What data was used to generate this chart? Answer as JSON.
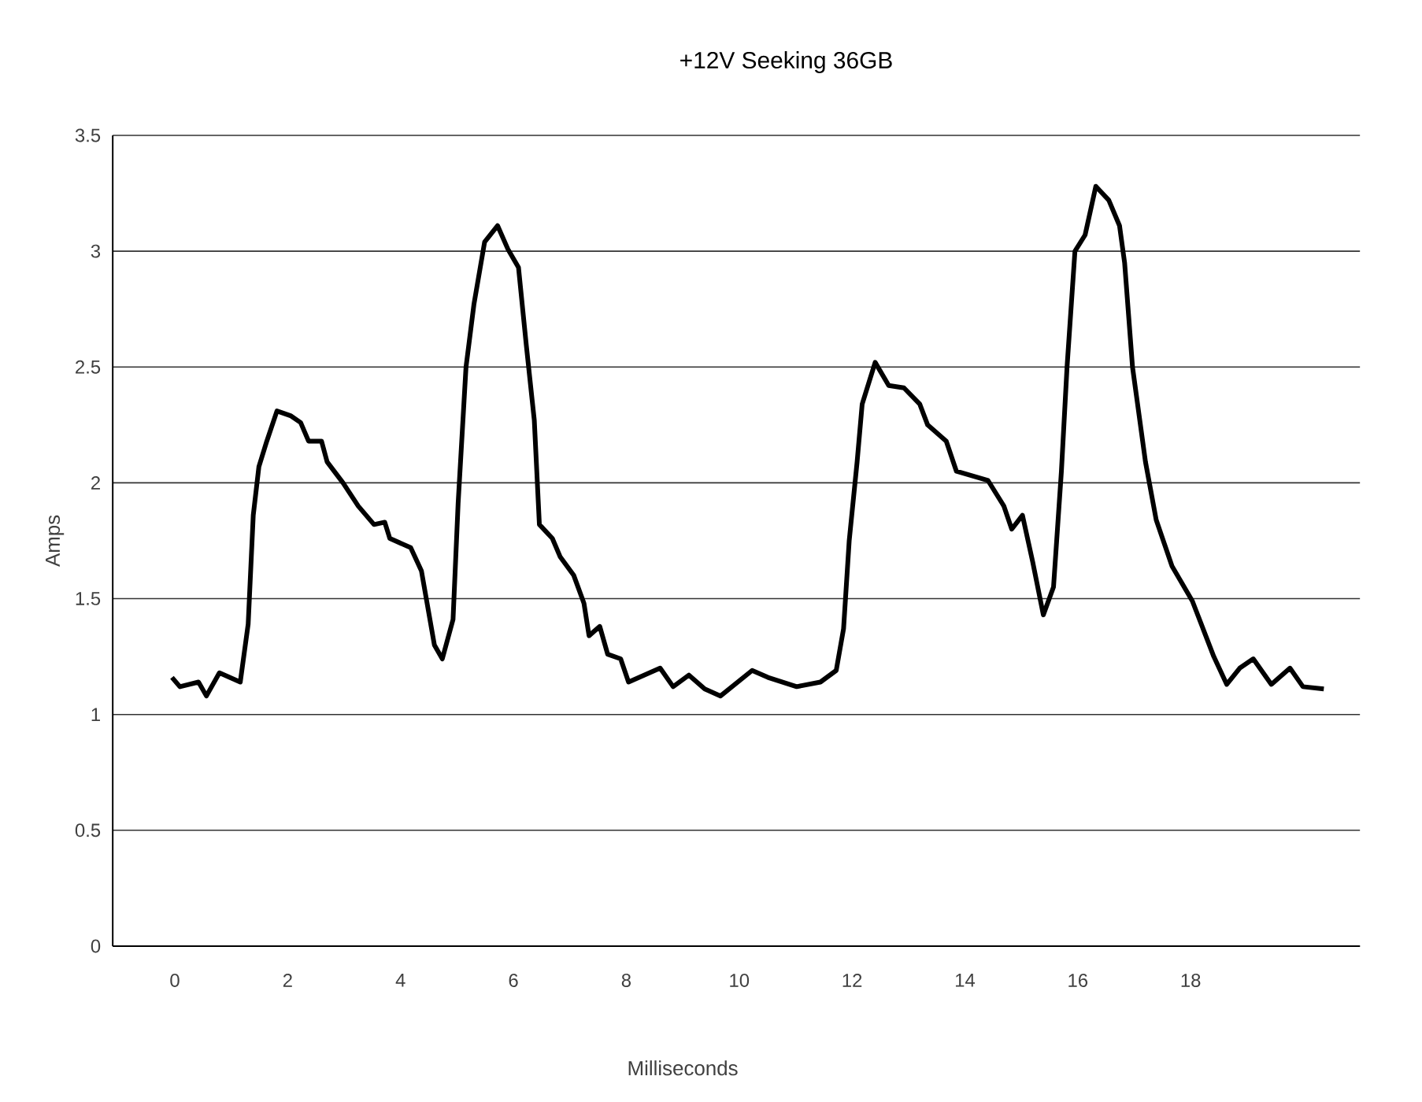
{
  "chart_data": {
    "type": "line",
    "title": "+12V Seeking 36GB",
    "xlabel": "Milliseconds",
    "ylabel": "Amps",
    "xlim": [
      -1.1,
      21
    ],
    "xticks": [
      0,
      2,
      4,
      6,
      8,
      10,
      12,
      14,
      16,
      18
    ],
    "ylim": [
      0,
      3.5
    ],
    "yticks": [
      0,
      0.5,
      1,
      1.5,
      2,
      2.5,
      3,
      3.5
    ],
    "grid": "y",
    "marker": "none",
    "line_style": "solid",
    "series": [
      {
        "color": "#000000",
        "x": [
          -0.05,
          0.09,
          0.42,
          0.56,
          0.79,
          1.16,
          1.3,
          1.39,
          1.49,
          1.63,
          1.81,
          2.05,
          2.23,
          2.37,
          2.6,
          2.7,
          2.98,
          3.25,
          3.53,
          3.72,
          3.81,
          4.18,
          4.37,
          4.6,
          4.74,
          4.93,
          5.02,
          5.16,
          5.3,
          5.49,
          5.72,
          5.9,
          6.09,
          6.23,
          6.37,
          6.46,
          6.69,
          6.83,
          7.07,
          7.25,
          7.34,
          7.53,
          7.67,
          7.9,
          8.04,
          8.32,
          8.6,
          8.83,
          9.11,
          9.39,
          9.67,
          10.23,
          10.51,
          11.02,
          11.44,
          11.72,
          11.85,
          11.95,
          12.09,
          12.18,
          12.41,
          12.65,
          12.92,
          13.2,
          13.34,
          13.67,
          13.85,
          14.41,
          14.69,
          14.83,
          15.02,
          15.2,
          15.39,
          15.57,
          15.71,
          15.81,
          15.95,
          16.13,
          16.32,
          16.55,
          16.74,
          16.83,
          16.97,
          17.2,
          17.39,
          17.67,
          18.03,
          18.41,
          18.64,
          18.87,
          19.11,
          19.43,
          19.76,
          19.99,
          20.36
        ],
        "values": [
          1.16,
          1.12,
          1.14,
          1.08,
          1.18,
          1.14,
          1.39,
          1.86,
          2.07,
          2.18,
          2.31,
          2.29,
          2.26,
          2.18,
          2.18,
          2.09,
          2.0,
          1.9,
          1.82,
          1.83,
          1.76,
          1.72,
          1.62,
          1.3,
          1.24,
          1.41,
          1.91,
          2.5,
          2.77,
          3.04,
          3.11,
          3.01,
          2.93,
          2.59,
          2.27,
          1.82,
          1.76,
          1.68,
          1.6,
          1.48,
          1.34,
          1.38,
          1.26,
          1.24,
          1.14,
          1.17,
          1.2,
          1.12,
          1.17,
          1.11,
          1.08,
          1.19,
          1.16,
          1.12,
          1.14,
          1.19,
          1.37,
          1.75,
          2.09,
          2.34,
          2.52,
          2.42,
          2.41,
          2.34,
          2.25,
          2.18,
          2.05,
          2.01,
          1.9,
          1.8,
          1.86,
          1.66,
          1.43,
          1.55,
          2.05,
          2.5,
          3.0,
          3.07,
          3.28,
          3.22,
          3.11,
          2.95,
          2.5,
          2.09,
          1.84,
          1.64,
          1.49,
          1.25,
          1.13,
          1.2,
          1.24,
          1.13,
          1.2,
          1.12,
          1.11
        ]
      }
    ]
  }
}
